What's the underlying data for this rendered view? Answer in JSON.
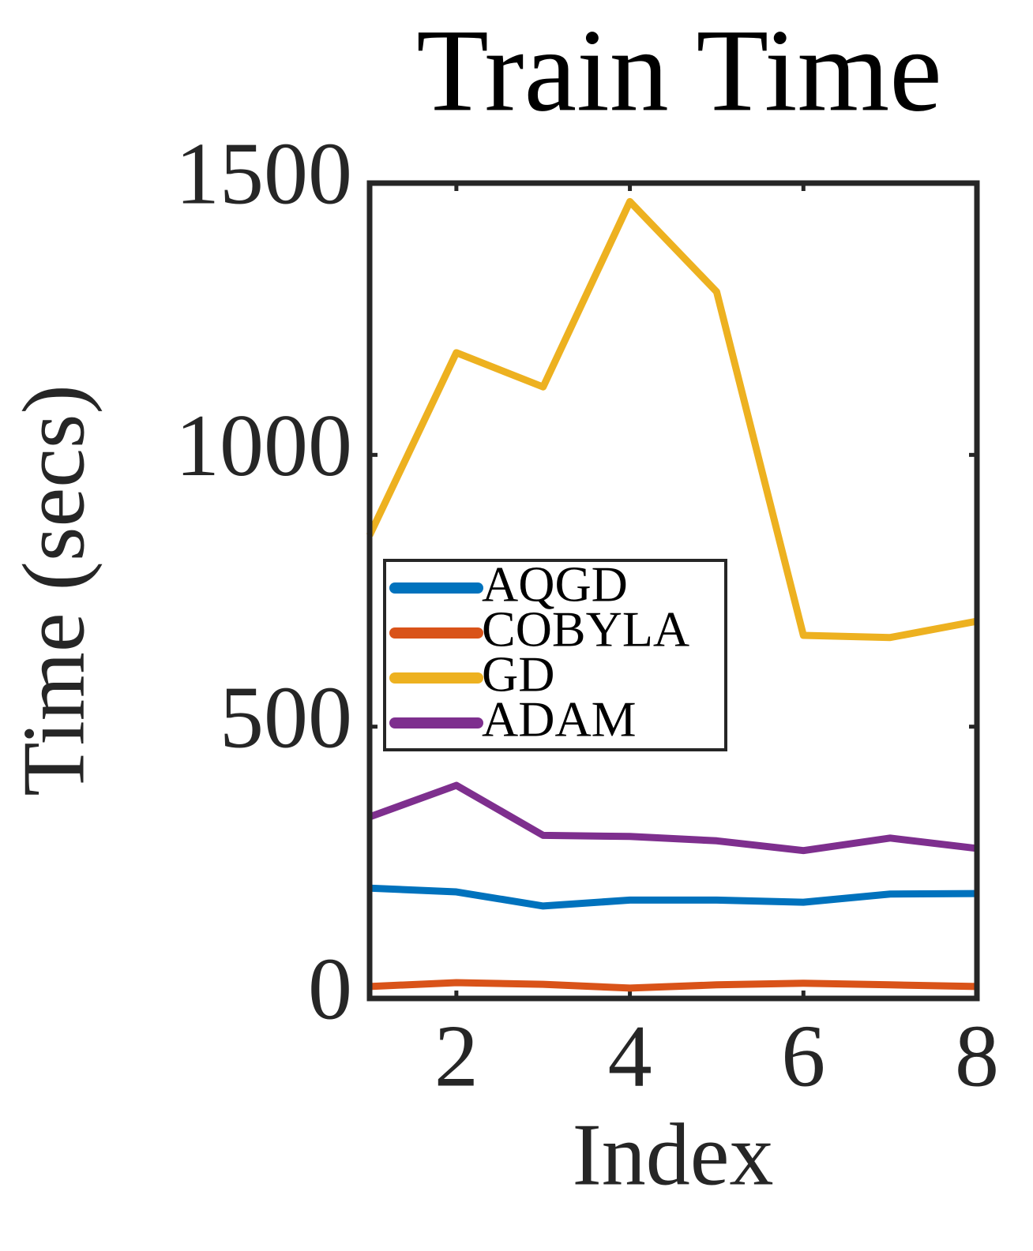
{
  "chart_data": {
    "type": "line",
    "title": "Train Time",
    "xlabel": "Index",
    "ylabel": "Time (secs)",
    "x": [
      1,
      2,
      3,
      4,
      5,
      6,
      7,
      8
    ],
    "series": [
      {
        "name": "AQGD",
        "color": "#0072bd",
        "values": [
          203,
          196,
          170,
          181,
          181,
          177,
          192,
          193
        ]
      },
      {
        "name": "COBYLA",
        "color": "#d95319",
        "values": [
          22,
          29,
          26,
          19,
          25,
          28,
          25,
          22
        ]
      },
      {
        "name": "GD",
        "color": "#edb120",
        "values": [
          852,
          1188,
          1125,
          1466,
          1300,
          668,
          664,
          694
        ]
      },
      {
        "name": "ADAM",
        "color": "#7e2f8e",
        "values": [
          334,
          392,
          300,
          298,
          290,
          272,
          295,
          276
        ]
      }
    ],
    "xlim": [
      1,
      8
    ],
    "xticks": [
      2,
      4,
      6,
      8
    ],
    "ylim": [
      0,
      1500
    ],
    "yticks": [
      0,
      500,
      1000,
      1500
    ],
    "grid": false,
    "legend": "center-left"
  }
}
